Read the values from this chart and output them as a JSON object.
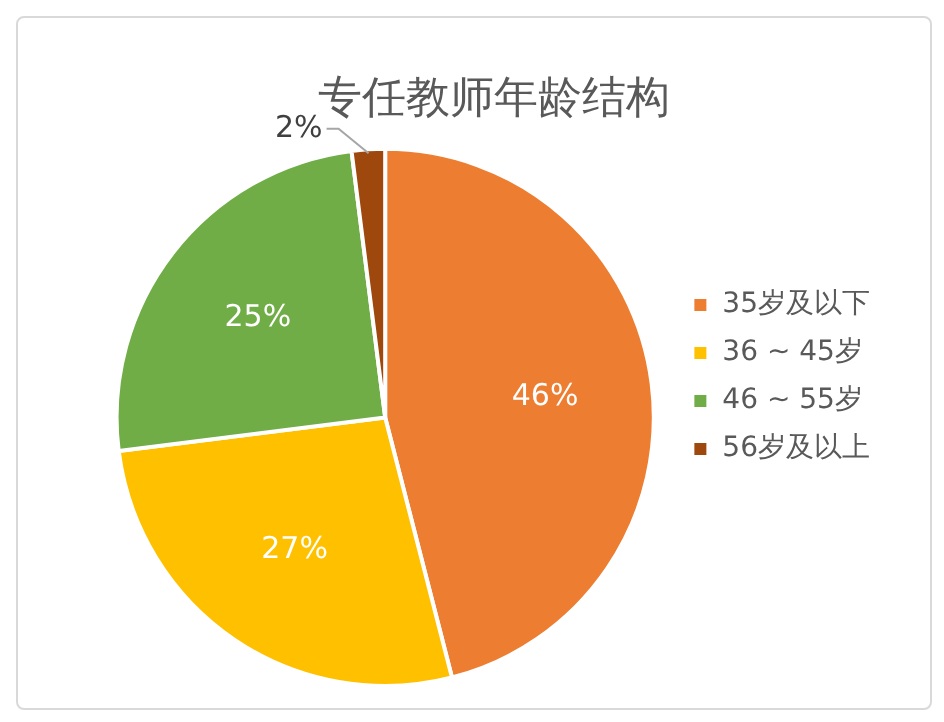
{
  "chart_data": {
    "type": "pie",
    "title": "专任教师年龄结构",
    "categories": [
      "35岁及以下",
      "36 ~ 45岁",
      "46 ~ 55岁",
      "56岁及以上"
    ],
    "values": [
      46,
      27,
      25,
      2
    ],
    "colors": [
      "#ed7d31",
      "#ffc000",
      "#70ad47",
      "#9e480e"
    ],
    "value_labels": [
      "46%",
      "27%",
      "25%",
      "2%"
    ],
    "legend": "right"
  }
}
